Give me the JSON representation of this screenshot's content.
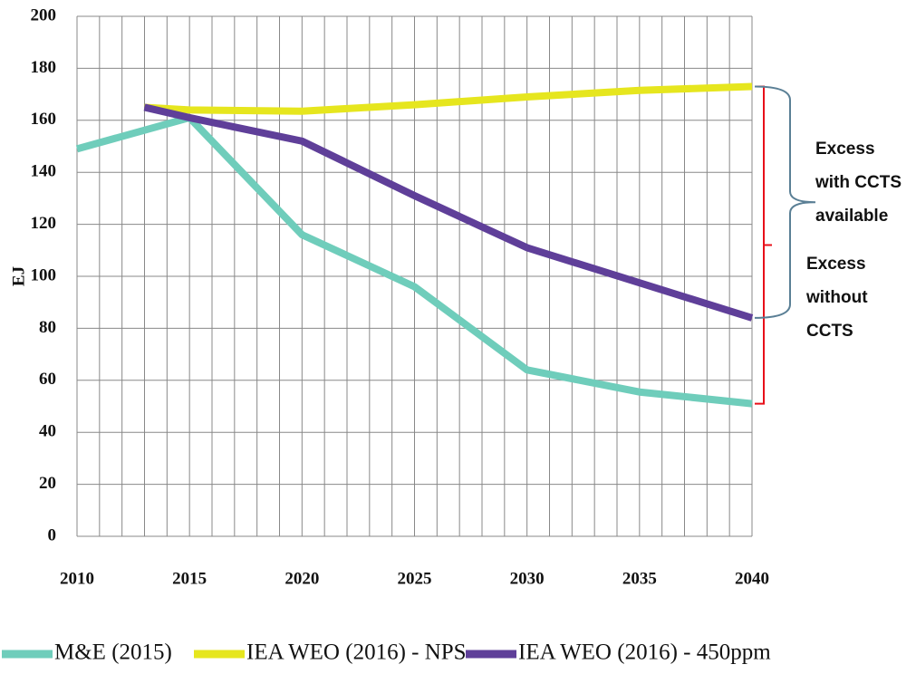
{
  "chart_data": {
    "type": "line",
    "ylabel": "EJ",
    "xlim": [
      2010,
      2040
    ],
    "xticks": [
      2010,
      2015,
      2020,
      2025,
      2030,
      2035,
      2040
    ],
    "ylim": [
      0,
      200
    ],
    "yticks": [
      0,
      20,
      40,
      60,
      80,
      100,
      120,
      140,
      160,
      180,
      200
    ],
    "grid": true,
    "series": [
      {
        "name": "M&E (2015)",
        "color": "#6fcdbb",
        "x": [
          2010,
          2015,
          2020,
          2025,
          2030,
          2035,
          2040
        ],
        "values": [
          149,
          161,
          116,
          96,
          64,
          55.5,
          51
        ]
      },
      {
        "name": "IEA WEO (2016) - NPS",
        "color": "#e6e61e",
        "x": [
          2013,
          2015,
          2020,
          2025,
          2030,
          2035,
          2040
        ],
        "values": [
          165,
          164,
          163.5,
          166,
          169,
          171.5,
          173
        ]
      },
      {
        "name": "IEA WEO (2016) - 450ppm",
        "color": "#5f3f99",
        "x": [
          2013,
          2015,
          2020,
          2025,
          2030,
          2035,
          2040
        ],
        "values": [
          165,
          161,
          152,
          131,
          111,
          97.5,
          84
        ]
      }
    ],
    "annotations": [
      {
        "lines": [
          "Excess",
          "with CCTS",
          "available"
        ]
      },
      {
        "lines": [
          "Excess",
          "without",
          "CCTS"
        ]
      }
    ]
  }
}
